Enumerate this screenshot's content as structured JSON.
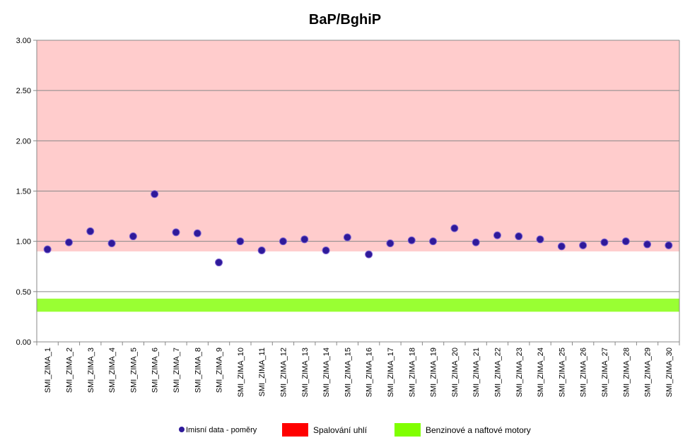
{
  "chart_data": {
    "type": "scatter",
    "title": "BaP/BghiP",
    "xlabel": "",
    "ylabel": "",
    "ylim": [
      0,
      3
    ],
    "yticks": [
      "0.00",
      "0.50",
      "1.00",
      "1.50",
      "2.00",
      "2.50",
      "3.00"
    ],
    "grid": true,
    "legend_position": "bottom",
    "categories": [
      "SMI_ZIMA_1",
      "SMI_ZIMA_2",
      "SMI_ZIMA_3",
      "SMI_ZIMA_4",
      "SMI_ZIMA_5",
      "SMI_ZIMA_6",
      "SMI_ZIMA_7",
      "SMI_ZIMA_8",
      "SMI_ZIMA_9",
      "SMI_ZIMA_10",
      "SMI_ZIMA_11",
      "SMI_ZIMA_12",
      "SMI_ZIMA_13",
      "SMI_ZIMA_14",
      "SMI_ZIMA_15",
      "SMI_ZIMA_16",
      "SMI_ZIMA_17",
      "SMI_ZIMA_18",
      "SMI_ZIMA_19",
      "SMI_ZIMA_20",
      "SMI_ZIMA_21",
      "SMI_ZIMA_22",
      "SMI_ZIMA_23",
      "SMI_ZIMA_24",
      "SMI_ZIMA_25",
      "SMI_ZIMA_26",
      "SMI_ZIMA_27",
      "SMI_ZIMA_28",
      "SMI_ZIMA_29",
      "SMI_ZIMA_30"
    ],
    "series": [
      {
        "name": "Imisní data - poměry",
        "color": "#2e1a9a",
        "values": [
          0.92,
          0.99,
          1.1,
          0.98,
          1.05,
          1.47,
          1.09,
          1.08,
          0.79,
          1.0,
          0.91,
          1.0,
          1.02,
          0.91,
          1.04,
          0.87,
          0.98,
          1.01,
          1.0,
          1.13,
          0.99,
          1.06,
          1.05,
          1.02,
          0.95,
          0.96,
          0.99,
          1.0,
          0.97,
          0.96
        ]
      }
    ],
    "bands": [
      {
        "name": "Spalování uhlí",
        "color": "#ff0000",
        "fill": "#ffcccc",
        "from": 0.9,
        "to": 3.0
      },
      {
        "name": "Benzinové a naftové motory",
        "color": "#80ff00",
        "fill": "#99ff33",
        "from": 0.3,
        "to": 0.43
      }
    ]
  }
}
